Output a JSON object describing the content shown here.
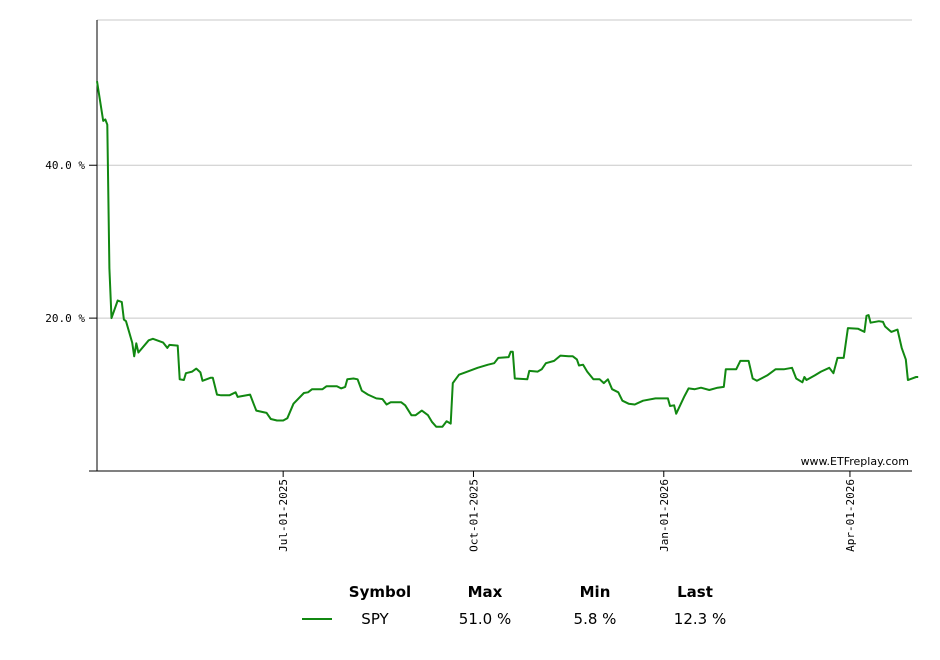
{
  "chart_data": {
    "type": "line",
    "title": "",
    "xlabel": "",
    "ylabel": "",
    "ylim": [
      0,
      59
    ],
    "yticks": [
      {
        "value": 20,
        "label": "20.0 %"
      },
      {
        "value": 40,
        "label": "40.0 %"
      }
    ],
    "xticks": [
      {
        "date": "2025-07-01",
        "label": "Jul-01-2025"
      },
      {
        "date": "2025-10-01",
        "label": "Oct-01-2025"
      },
      {
        "date": "2026-01-01",
        "label": "Jan-01-2026"
      },
      {
        "date": "2026-04-01",
        "label": "Apr-01-2026"
      }
    ],
    "xrange": [
      "2025-04-02",
      "2026-05-01"
    ],
    "grid": true,
    "watermark": "www.ETFreplay.com",
    "series": [
      {
        "name": "SPY",
        "color": "#118811",
        "points": [
          [
            "2025-04-02",
            51.0
          ],
          [
            "2025-04-05",
            45.8
          ],
          [
            "2025-04-06",
            46.0
          ],
          [
            "2025-04-07",
            45.3
          ],
          [
            "2025-04-08",
            26.5
          ],
          [
            "2025-04-09",
            20.0
          ],
          [
            "2025-04-12",
            22.3
          ],
          [
            "2025-04-14",
            22.1
          ],
          [
            "2025-04-15",
            19.8
          ],
          [
            "2025-04-16",
            19.6
          ],
          [
            "2025-04-19",
            16.8
          ],
          [
            "2025-04-20",
            15.0
          ],
          [
            "2025-04-21",
            16.7
          ],
          [
            "2025-04-22",
            15.5
          ],
          [
            "2025-04-27",
            17.1
          ],
          [
            "2025-04-29",
            17.3
          ],
          [
            "2025-05-04",
            16.8
          ],
          [
            "2025-05-06",
            16.1
          ],
          [
            "2025-05-07",
            16.5
          ],
          [
            "2025-05-11",
            16.4
          ],
          [
            "2025-05-12",
            12.0
          ],
          [
            "2025-05-14",
            11.9
          ],
          [
            "2025-05-15",
            12.8
          ],
          [
            "2025-05-18",
            13.0
          ],
          [
            "2025-05-20",
            13.4
          ],
          [
            "2025-05-22",
            12.9
          ],
          [
            "2025-05-23",
            11.8
          ],
          [
            "2025-05-27",
            12.2
          ],
          [
            "2025-05-28",
            12.2
          ],
          [
            "2025-05-30",
            10.0
          ],
          [
            "2025-06-01",
            9.9
          ],
          [
            "2025-06-05",
            9.9
          ],
          [
            "2025-06-08",
            10.3
          ],
          [
            "2025-06-09",
            9.7
          ],
          [
            "2025-06-15",
            10.0
          ],
          [
            "2025-06-17",
            8.6
          ],
          [
            "2025-06-18",
            7.9
          ],
          [
            "2025-06-23",
            7.6
          ],
          [
            "2025-06-25",
            6.8
          ],
          [
            "2025-06-28",
            6.6
          ],
          [
            "2025-07-01",
            6.6
          ],
          [
            "2025-07-03",
            6.9
          ],
          [
            "2025-07-06",
            8.8
          ],
          [
            "2025-07-11",
            10.2
          ],
          [
            "2025-07-13",
            10.3
          ],
          [
            "2025-07-15",
            10.7
          ],
          [
            "2025-07-20",
            10.7
          ],
          [
            "2025-07-22",
            11.1
          ],
          [
            "2025-07-27",
            11.1
          ],
          [
            "2025-07-29",
            10.8
          ],
          [
            "2025-07-31",
            11.0
          ],
          [
            "2025-08-01",
            12.0
          ],
          [
            "2025-08-04",
            12.1
          ],
          [
            "2025-08-06",
            12.0
          ],
          [
            "2025-08-08",
            10.5
          ],
          [
            "2025-08-11",
            10.0
          ],
          [
            "2025-08-15",
            9.5
          ],
          [
            "2025-08-18",
            9.4
          ],
          [
            "2025-08-20",
            8.7
          ],
          [
            "2025-08-22",
            9.0
          ],
          [
            "2025-08-27",
            9.0
          ],
          [
            "2025-08-29",
            8.6
          ],
          [
            "2025-09-01",
            7.3
          ],
          [
            "2025-09-03",
            7.3
          ],
          [
            "2025-09-06",
            7.9
          ],
          [
            "2025-09-09",
            7.3
          ],
          [
            "2025-09-11",
            6.4
          ],
          [
            "2025-09-13",
            5.8
          ],
          [
            "2025-09-16",
            5.8
          ],
          [
            "2025-09-18",
            6.5
          ],
          [
            "2025-09-20",
            6.2
          ],
          [
            "2025-09-21",
            11.5
          ],
          [
            "2025-09-24",
            12.6
          ],
          [
            "2025-09-27",
            12.9
          ],
          [
            "2025-10-03",
            13.5
          ],
          [
            "2025-10-08",
            13.9
          ],
          [
            "2025-10-11",
            14.1
          ],
          [
            "2025-10-13",
            14.8
          ],
          [
            "2025-10-18",
            14.9
          ],
          [
            "2025-10-19",
            15.6
          ],
          [
            "2025-10-20",
            15.6
          ],
          [
            "2025-10-21",
            12.1
          ],
          [
            "2025-10-27",
            12.0
          ],
          [
            "2025-10-28",
            13.1
          ],
          [
            "2025-11-01",
            13.0
          ],
          [
            "2025-11-03",
            13.3
          ],
          [
            "2025-11-05",
            14.1
          ],
          [
            "2025-11-09",
            14.4
          ],
          [
            "2025-11-12",
            15.1
          ],
          [
            "2025-11-16",
            15.0
          ],
          [
            "2025-11-18",
            15.0
          ],
          [
            "2025-11-20",
            14.6
          ],
          [
            "2025-11-21",
            13.8
          ],
          [
            "2025-11-23",
            13.9
          ],
          [
            "2025-11-25",
            13.0
          ],
          [
            "2025-11-28",
            12.0
          ],
          [
            "2025-12-01",
            12.0
          ],
          [
            "2025-12-03",
            11.5
          ],
          [
            "2025-12-05",
            12.0
          ],
          [
            "2025-12-07",
            10.7
          ],
          [
            "2025-12-10",
            10.3
          ],
          [
            "2025-12-12",
            9.2
          ],
          [
            "2025-12-15",
            8.8
          ],
          [
            "2025-12-18",
            8.7
          ],
          [
            "2025-12-22",
            9.2
          ],
          [
            "2025-12-28",
            9.5
          ],
          [
            "2026-01-03",
            9.5
          ],
          [
            "2026-01-04",
            8.5
          ],
          [
            "2026-01-06",
            8.6
          ],
          [
            "2026-01-07",
            7.5
          ],
          [
            "2026-01-11",
            9.8
          ],
          [
            "2026-01-13",
            10.8
          ],
          [
            "2026-01-16",
            10.7
          ],
          [
            "2026-01-19",
            10.9
          ],
          [
            "2026-01-23",
            10.6
          ],
          [
            "2026-01-27",
            10.9
          ],
          [
            "2026-01-30",
            11.0
          ],
          [
            "2026-01-31",
            13.3
          ],
          [
            "2026-02-05",
            13.3
          ],
          [
            "2026-02-07",
            14.4
          ],
          [
            "2026-02-11",
            14.4
          ],
          [
            "2026-02-13",
            12.1
          ],
          [
            "2026-02-15",
            11.8
          ],
          [
            "2026-02-20",
            12.5
          ],
          [
            "2026-02-24",
            13.3
          ],
          [
            "2026-02-28",
            13.3
          ],
          [
            "2026-03-04",
            13.5
          ],
          [
            "2026-03-06",
            12.1
          ],
          [
            "2026-03-09",
            11.6
          ],
          [
            "2026-03-10",
            12.3
          ],
          [
            "2026-03-11",
            11.9
          ],
          [
            "2026-03-15",
            12.5
          ],
          [
            "2026-03-18",
            13.0
          ],
          [
            "2026-03-22",
            13.5
          ],
          [
            "2026-03-24",
            12.8
          ],
          [
            "2026-03-26",
            14.8
          ],
          [
            "2026-03-29",
            14.8
          ],
          [
            "2026-03-31",
            18.7
          ],
          [
            "2026-04-05",
            18.6
          ],
          [
            "2026-04-08",
            18.2
          ],
          [
            "2026-04-09",
            20.3
          ],
          [
            "2026-04-10",
            20.4
          ],
          [
            "2026-04-11",
            19.4
          ],
          [
            "2026-04-15",
            19.6
          ],
          [
            "2026-04-17",
            19.5
          ],
          [
            "2026-04-18",
            18.9
          ],
          [
            "2026-04-21",
            18.2
          ],
          [
            "2026-04-24",
            18.5
          ],
          [
            "2026-04-26",
            16.1
          ],
          [
            "2026-04-28",
            14.6
          ],
          [
            "2026-04-29",
            11.9
          ],
          [
            "2026-04-30",
            12.0
          ],
          [
            "2026-05-03",
            12.3
          ],
          [
            "2026-05-04",
            12.3
          ]
        ]
      }
    ],
    "summary": {
      "headers": {
        "symbol": "Symbol",
        "max": "Max",
        "min": "Min",
        "last": "Last"
      },
      "rows": [
        {
          "symbol": "SPY",
          "max": "51.0 %",
          "min": "5.8 %",
          "last": "12.3 %",
          "color": "#118811"
        }
      ]
    }
  }
}
